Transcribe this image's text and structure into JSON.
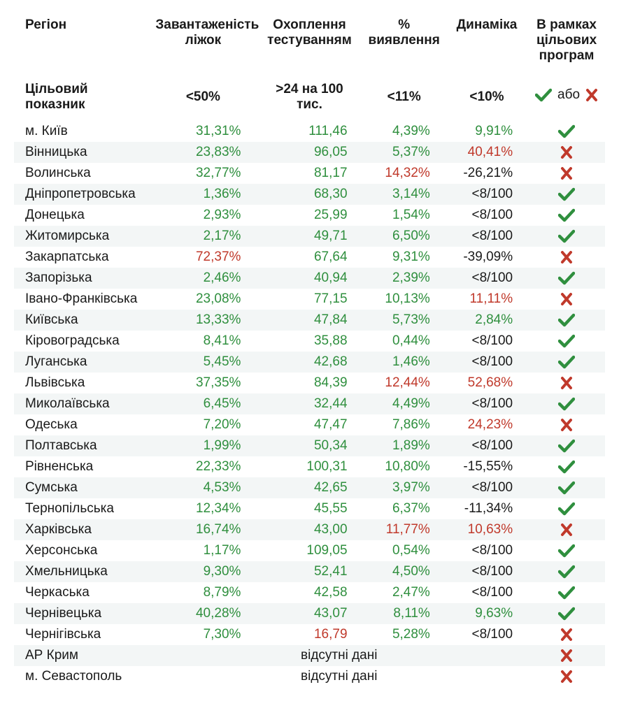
{
  "colors": {
    "pass": "#2f8f3e",
    "fail": "#c0392b",
    "text": "#1a1a1a",
    "stripe": "#f3f6f6",
    "background": "#ffffff"
  },
  "columns": {
    "region": "Регіон",
    "beds": "Завантаженість ліжок",
    "testing": "Охоплення тестуванням",
    "detection": "% виявлення",
    "dynamics": "Динаміка",
    "target_programs": "В рамках цільових програм"
  },
  "col_widths": {
    "region": "23%",
    "beds": "18%",
    "testing": "18%",
    "detection": "14%",
    "dynamics": "14%",
    "target_programs": "13%"
  },
  "target_row": {
    "label": "Цільовий показник",
    "beds": "<50%",
    "testing": ">24 на 100 тис.",
    "detection": "<11%",
    "dynamics": "<10%",
    "abo": "або"
  },
  "rows": [
    {
      "region": "м. Київ",
      "beds": {
        "v": "31,31%",
        "c": "pass"
      },
      "testing": {
        "v": "111,46",
        "c": "pass"
      },
      "detection": {
        "v": "4,39%",
        "c": "pass"
      },
      "dynamics": {
        "v": "9,91%",
        "c": "pass"
      },
      "status": "pass"
    },
    {
      "region": "Вінницька",
      "beds": {
        "v": "23,83%",
        "c": "pass"
      },
      "testing": {
        "v": "96,05",
        "c": "pass"
      },
      "detection": {
        "v": "5,37%",
        "c": "pass"
      },
      "dynamics": {
        "v": "40,41%",
        "c": "fail"
      },
      "status": "fail"
    },
    {
      "region": "Волинська",
      "beds": {
        "v": "32,77%",
        "c": "pass"
      },
      "testing": {
        "v": "81,17",
        "c": "pass"
      },
      "detection": {
        "v": "14,32%",
        "c": "fail"
      },
      "dynamics": {
        "v": "-26,21%",
        "c": "text"
      },
      "status": "fail"
    },
    {
      "region": "Дніпропетровська",
      "beds": {
        "v": "1,36%",
        "c": "pass"
      },
      "testing": {
        "v": "68,30",
        "c": "pass"
      },
      "detection": {
        "v": "3,14%",
        "c": "pass"
      },
      "dynamics": {
        "v": "<8/100",
        "c": "text"
      },
      "status": "pass"
    },
    {
      "region": "Донецька",
      "beds": {
        "v": "2,93%",
        "c": "pass"
      },
      "testing": {
        "v": "25,99",
        "c": "pass"
      },
      "detection": {
        "v": "1,54%",
        "c": "pass"
      },
      "dynamics": {
        "v": "<8/100",
        "c": "text"
      },
      "status": "pass"
    },
    {
      "region": "Житомирська",
      "beds": {
        "v": "2,17%",
        "c": "pass"
      },
      "testing": {
        "v": "49,71",
        "c": "pass"
      },
      "detection": {
        "v": "6,50%",
        "c": "pass"
      },
      "dynamics": {
        "v": "<8/100",
        "c": "text"
      },
      "status": "pass"
    },
    {
      "region": "Закарпатська",
      "beds": {
        "v": "72,37%",
        "c": "fail"
      },
      "testing": {
        "v": "67,64",
        "c": "pass"
      },
      "detection": {
        "v": "9,31%",
        "c": "pass"
      },
      "dynamics": {
        "v": "-39,09%",
        "c": "text"
      },
      "status": "fail"
    },
    {
      "region": "Запорізька",
      "beds": {
        "v": "2,46%",
        "c": "pass"
      },
      "testing": {
        "v": "40,94",
        "c": "pass"
      },
      "detection": {
        "v": "2,39%",
        "c": "pass"
      },
      "dynamics": {
        "v": "<8/100",
        "c": "text"
      },
      "status": "pass"
    },
    {
      "region": "Івано-Франківська",
      "beds": {
        "v": "23,08%",
        "c": "pass"
      },
      "testing": {
        "v": "77,15",
        "c": "pass"
      },
      "detection": {
        "v": "10,13%",
        "c": "pass"
      },
      "dynamics": {
        "v": "11,11%",
        "c": "fail"
      },
      "status": "fail"
    },
    {
      "region": "Київська",
      "beds": {
        "v": "13,33%",
        "c": "pass"
      },
      "testing": {
        "v": "47,84",
        "c": "pass"
      },
      "detection": {
        "v": "5,73%",
        "c": "pass"
      },
      "dynamics": {
        "v": "2,84%",
        "c": "pass"
      },
      "status": "pass"
    },
    {
      "region": "Кіровоградська",
      "beds": {
        "v": "8,41%",
        "c": "pass"
      },
      "testing": {
        "v": "35,88",
        "c": "pass"
      },
      "detection": {
        "v": "0,44%",
        "c": "pass"
      },
      "dynamics": {
        "v": "<8/100",
        "c": "text"
      },
      "status": "pass"
    },
    {
      "region": "Луганська",
      "beds": {
        "v": "5,45%",
        "c": "pass"
      },
      "testing": {
        "v": "42,68",
        "c": "pass"
      },
      "detection": {
        "v": "1,46%",
        "c": "pass"
      },
      "dynamics": {
        "v": "<8/100",
        "c": "text"
      },
      "status": "pass"
    },
    {
      "region": "Львівська",
      "beds": {
        "v": "37,35%",
        "c": "pass"
      },
      "testing": {
        "v": "84,39",
        "c": "pass"
      },
      "detection": {
        "v": "12,44%",
        "c": "fail"
      },
      "dynamics": {
        "v": "52,68%",
        "c": "fail"
      },
      "status": "fail"
    },
    {
      "region": "Миколаївська",
      "beds": {
        "v": "6,45%",
        "c": "pass"
      },
      "testing": {
        "v": "32,44",
        "c": "pass"
      },
      "detection": {
        "v": "4,49%",
        "c": "pass"
      },
      "dynamics": {
        "v": "<8/100",
        "c": "text"
      },
      "status": "pass"
    },
    {
      "region": "Одеська",
      "beds": {
        "v": "7,20%",
        "c": "pass"
      },
      "testing": {
        "v": "47,47",
        "c": "pass"
      },
      "detection": {
        "v": "7,86%",
        "c": "pass"
      },
      "dynamics": {
        "v": "24,23%",
        "c": "fail"
      },
      "status": "fail"
    },
    {
      "region": "Полтавська",
      "beds": {
        "v": "1,99%",
        "c": "pass"
      },
      "testing": {
        "v": "50,34",
        "c": "pass"
      },
      "detection": {
        "v": "1,89%",
        "c": "pass"
      },
      "dynamics": {
        "v": "<8/100",
        "c": "text"
      },
      "status": "pass"
    },
    {
      "region": "Рівненська",
      "beds": {
        "v": "22,33%",
        "c": "pass"
      },
      "testing": {
        "v": "100,31",
        "c": "pass"
      },
      "detection": {
        "v": "10,80%",
        "c": "pass"
      },
      "dynamics": {
        "v": "-15,55%",
        "c": "text"
      },
      "status": "pass"
    },
    {
      "region": "Сумська",
      "beds": {
        "v": "4,53%",
        "c": "pass"
      },
      "testing": {
        "v": "42,65",
        "c": "pass"
      },
      "detection": {
        "v": "3,97%",
        "c": "pass"
      },
      "dynamics": {
        "v": "<8/100",
        "c": "text"
      },
      "status": "pass"
    },
    {
      "region": "Тернопільська",
      "beds": {
        "v": "12,34%",
        "c": "pass"
      },
      "testing": {
        "v": "45,55",
        "c": "pass"
      },
      "detection": {
        "v": "6,37%",
        "c": "pass"
      },
      "dynamics": {
        "v": "-11,34%",
        "c": "text"
      },
      "status": "pass"
    },
    {
      "region": "Харківська",
      "beds": {
        "v": "16,74%",
        "c": "pass"
      },
      "testing": {
        "v": "43,00",
        "c": "pass"
      },
      "detection": {
        "v": "11,77%",
        "c": "fail"
      },
      "dynamics": {
        "v": "10,63%",
        "c": "fail"
      },
      "status": "fail"
    },
    {
      "region": "Херсонська",
      "beds": {
        "v": "1,17%",
        "c": "pass"
      },
      "testing": {
        "v": "109,05",
        "c": "pass"
      },
      "detection": {
        "v": "0,54%",
        "c": "pass"
      },
      "dynamics": {
        "v": "<8/100",
        "c": "text"
      },
      "status": "pass"
    },
    {
      "region": "Хмельницька",
      "beds": {
        "v": "9,30%",
        "c": "pass"
      },
      "testing": {
        "v": "52,41",
        "c": "pass"
      },
      "detection": {
        "v": "4,50%",
        "c": "pass"
      },
      "dynamics": {
        "v": "<8/100",
        "c": "text"
      },
      "status": "pass"
    },
    {
      "region": "Черкаська",
      "beds": {
        "v": "8,79%",
        "c": "pass"
      },
      "testing": {
        "v": "42,58",
        "c": "pass"
      },
      "detection": {
        "v": "2,47%",
        "c": "pass"
      },
      "dynamics": {
        "v": "<8/100",
        "c": "text"
      },
      "status": "pass"
    },
    {
      "region": "Чернівецька",
      "beds": {
        "v": "40,28%",
        "c": "pass"
      },
      "testing": {
        "v": "43,07",
        "c": "pass"
      },
      "detection": {
        "v": "8,11%",
        "c": "pass"
      },
      "dynamics": {
        "v": "9,63%",
        "c": "pass"
      },
      "status": "pass"
    },
    {
      "region": "Чернігівська",
      "beds": {
        "v": "7,30%",
        "c": "pass"
      },
      "testing": {
        "v": "16,79",
        "c": "fail"
      },
      "detection": {
        "v": "5,28%",
        "c": "pass"
      },
      "dynamics": {
        "v": "<8/100",
        "c": "text"
      },
      "status": "fail"
    },
    {
      "region": "АР Крим",
      "no_data": "відсутні дані",
      "status": "fail"
    },
    {
      "region": "м. Севастополь",
      "no_data": "відсутні дані",
      "status": "fail"
    }
  ],
  "icons": {
    "pass_svg": "check-icon",
    "fail_svg": "x-icon"
  },
  "font_sizes": {
    "header": 19,
    "body": 19
  }
}
